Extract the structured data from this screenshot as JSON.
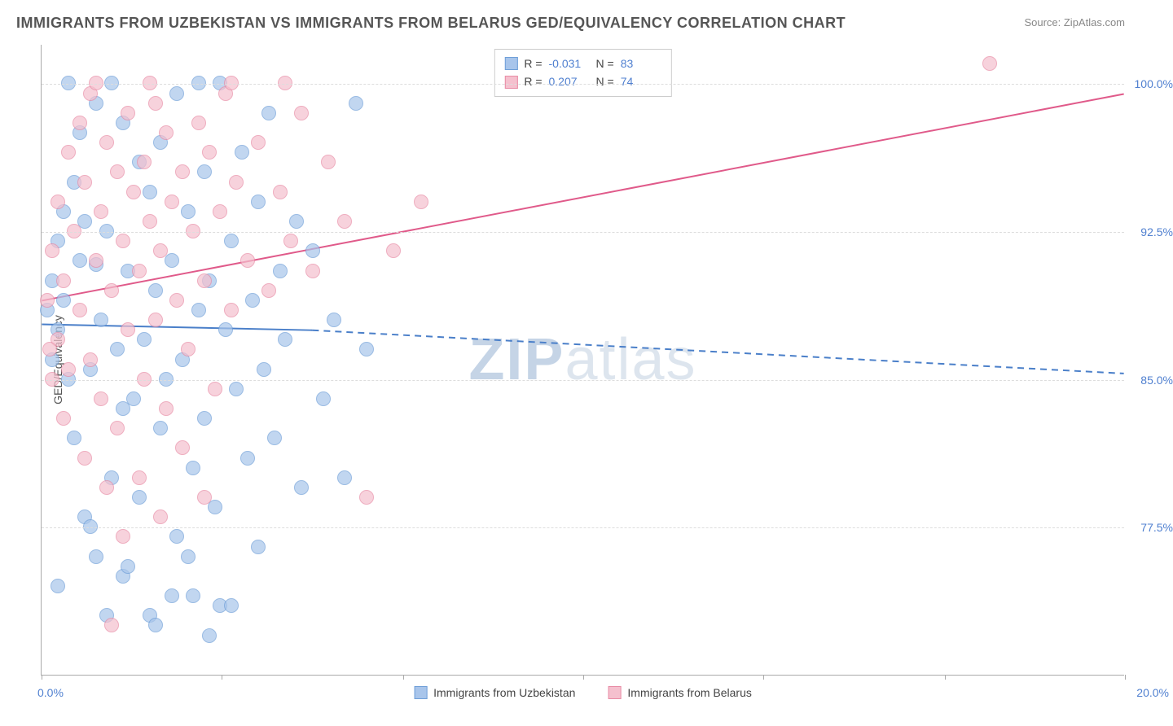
{
  "title": "IMMIGRANTS FROM UZBEKISTAN VS IMMIGRANTS FROM BELARUS GED/EQUIVALENCY CORRELATION CHART",
  "source": "Source: ZipAtlas.com",
  "watermark_bold": "ZIP",
  "watermark_light": "atlas",
  "chart": {
    "type": "scatter",
    "y_axis_title": "GED/Equivalency",
    "x_min": 0.0,
    "x_max": 20.0,
    "y_min": 70.0,
    "y_max": 102.0,
    "x_label_min": "0.0%",
    "x_label_max": "20.0%",
    "y_gridlines": [
      77.5,
      85.0,
      92.5,
      100.0
    ],
    "y_tick_labels": [
      "77.5%",
      "85.0%",
      "92.5%",
      "100.0%"
    ],
    "x_tick_positions": [
      0,
      3.33,
      6.67,
      10.0,
      13.33,
      16.67,
      20.0
    ],
    "background_color": "#ffffff",
    "grid_color": "#dddddd",
    "point_radius": 9,
    "series": [
      {
        "name": "Immigrants from Uzbekistan",
        "fill": "#a8c5eb",
        "stroke": "#6f9fd8",
        "opacity": 0.7,
        "R": "-0.031",
        "N": "83",
        "trend": {
          "y_at_x0": 87.8,
          "y_at_x5": 87.5,
          "solid_until_x": 5.0,
          "y_at_xmax": 85.3,
          "stroke": "#4a7fc9",
          "width": 2
        },
        "points": [
          [
            0.1,
            88.5
          ],
          [
            0.2,
            86.0
          ],
          [
            0.2,
            90.0
          ],
          [
            0.3,
            87.5
          ],
          [
            0.3,
            92.0
          ],
          [
            0.4,
            89.0
          ],
          [
            0.5,
            100.0
          ],
          [
            0.5,
            85.0
          ],
          [
            0.6,
            95.0
          ],
          [
            0.6,
            82.0
          ],
          [
            0.7,
            97.5
          ],
          [
            0.8,
            78.0
          ],
          [
            0.8,
            93.0
          ],
          [
            0.9,
            85.5
          ],
          [
            1.0,
            99.0
          ],
          [
            1.0,
            76.0
          ],
          [
            1.1,
            88.0
          ],
          [
            1.2,
            92.5
          ],
          [
            1.3,
            80.0
          ],
          [
            1.3,
            100.0
          ],
          [
            1.4,
            86.5
          ],
          [
            1.5,
            98.0
          ],
          [
            1.5,
            75.0
          ],
          [
            1.6,
            90.5
          ],
          [
            1.7,
            84.0
          ],
          [
            1.8,
            96.0
          ],
          [
            1.8,
            79.0
          ],
          [
            1.9,
            87.0
          ],
          [
            2.0,
            94.5
          ],
          [
            2.0,
            73.0
          ],
          [
            2.1,
            89.5
          ],
          [
            2.2,
            97.0
          ],
          [
            2.2,
            82.5
          ],
          [
            2.3,
            85.0
          ],
          [
            2.4,
            91.0
          ],
          [
            2.5,
            77.0
          ],
          [
            2.5,
            99.5
          ],
          [
            2.6,
            86.0
          ],
          [
            2.7,
            93.5
          ],
          [
            2.8,
            80.5
          ],
          [
            2.8,
            74.0
          ],
          [
            2.9,
            88.5
          ],
          [
            3.0,
            95.5
          ],
          [
            3.0,
            83.0
          ],
          [
            3.1,
            90.0
          ],
          [
            3.2,
            78.5
          ],
          [
            3.3,
            100.0
          ],
          [
            3.3,
            73.5
          ],
          [
            3.4,
            87.5
          ],
          [
            3.5,
            92.0
          ],
          [
            3.6,
            84.5
          ],
          [
            3.7,
            96.5
          ],
          [
            3.8,
            81.0
          ],
          [
            3.9,
            89.0
          ],
          [
            4.0,
            94.0
          ],
          [
            4.0,
            76.5
          ],
          [
            4.1,
            85.5
          ],
          [
            4.2,
            98.5
          ],
          [
            4.3,
            82.0
          ],
          [
            4.4,
            90.5
          ],
          [
            4.5,
            87.0
          ],
          [
            4.7,
            93.0
          ],
          [
            4.8,
            79.5
          ],
          [
            5.0,
            91.5
          ],
          [
            5.2,
            84.0
          ],
          [
            5.4,
            88.0
          ],
          [
            5.6,
            80.0
          ],
          [
            5.8,
            99.0
          ],
          [
            6.0,
            86.5
          ],
          [
            0.3,
            74.5
          ],
          [
            0.9,
            77.5
          ],
          [
            1.2,
            73.0
          ],
          [
            1.6,
            75.5
          ],
          [
            2.1,
            72.5
          ],
          [
            2.4,
            74.0
          ],
          [
            2.7,
            76.0
          ],
          [
            3.1,
            72.0
          ],
          [
            3.5,
            73.5
          ],
          [
            1.0,
            90.8
          ],
          [
            1.5,
            83.5
          ],
          [
            0.4,
            93.5
          ],
          [
            0.7,
            91.0
          ],
          [
            2.9,
            100.0
          ]
        ]
      },
      {
        "name": "Immigrants from Belarus",
        "fill": "#f5c0ce",
        "stroke": "#e88ba5",
        "opacity": 0.7,
        "R": "0.207",
        "N": "74",
        "trend": {
          "y_at_x0": 89.0,
          "y_at_xmax": 99.5,
          "stroke": "#e05a8a",
          "width": 2
        },
        "points": [
          [
            0.1,
            89.0
          ],
          [
            0.2,
            91.5
          ],
          [
            0.3,
            87.0
          ],
          [
            0.3,
            94.0
          ],
          [
            0.4,
            90.0
          ],
          [
            0.5,
            96.5
          ],
          [
            0.5,
            85.5
          ],
          [
            0.6,
            92.5
          ],
          [
            0.7,
            98.0
          ],
          [
            0.7,
            88.5
          ],
          [
            0.8,
            95.0
          ],
          [
            0.9,
            86.0
          ],
          [
            0.9,
            99.5
          ],
          [
            1.0,
            91.0
          ],
          [
            1.1,
            93.5
          ],
          [
            1.1,
            84.0
          ],
          [
            1.2,
            97.0
          ],
          [
            1.3,
            89.5
          ],
          [
            1.4,
            95.5
          ],
          [
            1.4,
            82.5
          ],
          [
            1.5,
            92.0
          ],
          [
            1.6,
            98.5
          ],
          [
            1.6,
            87.5
          ],
          [
            1.7,
            94.5
          ],
          [
            1.8,
            90.5
          ],
          [
            1.9,
            96.0
          ],
          [
            1.9,
            85.0
          ],
          [
            2.0,
            93.0
          ],
          [
            2.1,
            99.0
          ],
          [
            2.1,
            88.0
          ],
          [
            2.2,
            91.5
          ],
          [
            2.3,
            97.5
          ],
          [
            2.3,
            83.5
          ],
          [
            2.4,
            94.0
          ],
          [
            2.5,
            89.0
          ],
          [
            2.6,
            95.5
          ],
          [
            2.7,
            86.5
          ],
          [
            2.8,
            92.5
          ],
          [
            2.9,
            98.0
          ],
          [
            3.0,
            90.0
          ],
          [
            3.1,
            96.5
          ],
          [
            3.2,
            84.5
          ],
          [
            3.3,
            93.5
          ],
          [
            3.4,
            99.5
          ],
          [
            3.5,
            88.5
          ],
          [
            3.6,
            95.0
          ],
          [
            3.8,
            91.0
          ],
          [
            4.0,
            97.0
          ],
          [
            4.2,
            89.5
          ],
          [
            4.4,
            94.5
          ],
          [
            4.6,
            92.0
          ],
          [
            4.8,
            98.5
          ],
          [
            5.0,
            90.5
          ],
          [
            5.3,
            96.0
          ],
          [
            5.6,
            93.0
          ],
          [
            6.0,
            79.0
          ],
          [
            6.5,
            91.5
          ],
          [
            7.0,
            94.0
          ],
          [
            0.4,
            83.0
          ],
          [
            0.8,
            81.0
          ],
          [
            1.2,
            79.5
          ],
          [
            1.5,
            77.0
          ],
          [
            1.8,
            80.0
          ],
          [
            2.2,
            78.0
          ],
          [
            2.6,
            81.5
          ],
          [
            3.0,
            79.0
          ],
          [
            1.0,
            100.0
          ],
          [
            2.0,
            100.0
          ],
          [
            3.5,
            100.0
          ],
          [
            4.5,
            100.0
          ],
          [
            1.3,
            72.5
          ],
          [
            0.2,
            85.0
          ],
          [
            17.5,
            101.0
          ],
          [
            0.15,
            86.5
          ]
        ]
      }
    ],
    "legend_series1": "Immigrants from Uzbekistan",
    "legend_series2": "Immigrants from Belarus"
  }
}
